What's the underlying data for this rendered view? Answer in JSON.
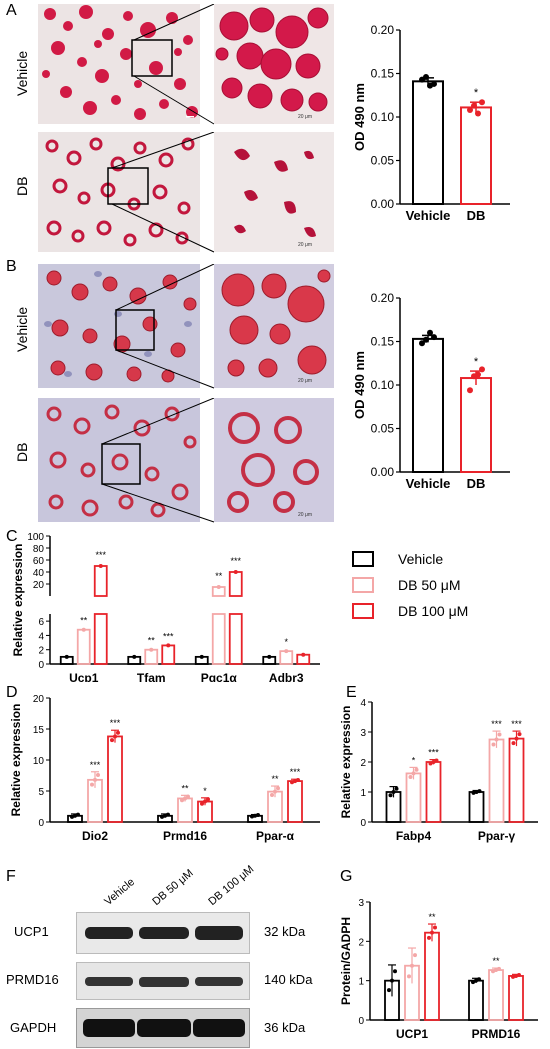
{
  "panels": {
    "A": {
      "letter": "A",
      "rows": [
        "Vehicle",
        "DB"
      ],
      "scale_bar": "20 μm",
      "chart_data": {
        "type": "bar",
        "categories": [
          "Vehicle",
          "DB"
        ],
        "values": [
          0.141,
          0.111
        ],
        "errors": [
          0.004,
          0.006
        ],
        "points": [
          [
            0.143,
            0.146,
            0.136,
            0.138
          ],
          [
            0.108,
            0.113,
            0.104,
            0.117
          ]
        ],
        "significance": [
          "",
          "*"
        ],
        "ylabel": "OD 490 nm",
        "ylim": [
          0,
          0.2
        ],
        "yticks": [
          "0.00",
          "0.05",
          "0.10",
          "0.15",
          "0.20"
        ],
        "colors": [
          "#000000",
          "#e8232a"
        ]
      }
    },
    "B": {
      "letter": "B",
      "rows": [
        "Vehicle",
        "DB"
      ],
      "scale_bar": "20 μm",
      "chart_data": {
        "type": "bar",
        "categories": [
          "Vehicle",
          "DB"
        ],
        "values": [
          0.153,
          0.108
        ],
        "errors": [
          0.004,
          0.008
        ],
        "points": [
          [
            0.148,
            0.152,
            0.16,
            0.155
          ],
          [
            0.094,
            0.11,
            0.112,
            0.118
          ]
        ],
        "significance": [
          "",
          "*"
        ],
        "ylabel": "OD 490 nm",
        "ylim": [
          0,
          0.2
        ],
        "yticks": [
          "0.00",
          "0.05",
          "0.10",
          "0.15",
          "0.20"
        ],
        "colors": [
          "#000000",
          "#e8232a"
        ]
      }
    },
    "C": {
      "letter": "C",
      "legend": [
        "Vehicle",
        "DB 50 μM",
        "DB 100 μM"
      ],
      "chart_data": {
        "type": "bar",
        "categories": [
          "Ucp1",
          "Tfam",
          "Pgc1α",
          "Adbr3"
        ],
        "series": [
          {
            "name": "Vehicle",
            "values": [
              1.0,
              1.0,
              1.0,
              1.0
            ],
            "sig": [
              "",
              "",
              "",
              ""
            ]
          },
          {
            "name": "DB 50 μM",
            "values": [
              4.8,
              2.0,
              15,
              1.8
            ],
            "sig": [
              "**",
              "**",
              "**",
              "*"
            ]
          },
          {
            "name": "DB 100 μM",
            "values": [
              50,
              2.6,
              40,
              1.3
            ],
            "sig": [
              "***",
              "***",
              "***",
              ""
            ]
          }
        ],
        "ylabel": "Relative  expression",
        "yticks_low": [
          "0",
          "2",
          "4",
          "6"
        ],
        "yticks_high": [
          "20",
          "40",
          "60",
          "80",
          "100"
        ],
        "colors": [
          "#000000",
          "#f4a7a7",
          "#e8232a"
        ]
      }
    },
    "D": {
      "letter": "D",
      "chart_data": {
        "type": "bar",
        "categories": [
          "Dio2",
          "Prmd16",
          "Ppar-α"
        ],
        "series": [
          {
            "name": "Vehicle",
            "values": [
              1.0,
              1.0,
              1.0
            ],
            "sig": [
              "",
              "",
              ""
            ]
          },
          {
            "name": "DB 50 μM",
            "values": [
              6.8,
              3.8,
              4.9
            ],
            "sig": [
              "***",
              "**",
              "**"
            ]
          },
          {
            "name": "DB 100 μM",
            "values": [
              13.8,
              3.3,
              6.6
            ],
            "sig": [
              "***",
              "*",
              "***"
            ]
          }
        ],
        "errors": [
          [
            0.3,
            0.3,
            0.2
          ],
          [
            1.3,
            0.5,
            0.9
          ],
          [
            1.0,
            0.6,
            0.3
          ]
        ],
        "ylabel": "Relative  expression",
        "ylim": [
          0,
          20
        ],
        "yticks": [
          "0",
          "5",
          "10",
          "15",
          "20"
        ],
        "colors": [
          "#000000",
          "#f4a7a7",
          "#e8232a"
        ]
      }
    },
    "E": {
      "letter": "E",
      "chart_data": {
        "type": "bar",
        "categories": [
          "Fabp4",
          "Ppar-γ"
        ],
        "series": [
          {
            "name": "Vehicle",
            "values": [
              1.0,
              1.0
            ],
            "sig": [
              "",
              ""
            ]
          },
          {
            "name": "DB 50 μM",
            "values": [
              1.62,
              2.75
            ],
            "sig": [
              "*",
              "***"
            ]
          },
          {
            "name": "DB 100 μM",
            "values": [
              2.0,
              2.78
            ],
            "sig": [
              "***",
              "***"
            ]
          }
        ],
        "errors": [
          [
            0.18,
            0.05
          ],
          [
            0.2,
            0.28
          ],
          [
            0.08,
            0.25
          ]
        ],
        "ylabel": "Relative  expression",
        "ylim": [
          0,
          4
        ],
        "yticks": [
          "0",
          "1",
          "2",
          "3",
          "4"
        ],
        "colors": [
          "#000000",
          "#f4a7a7",
          "#e8232a"
        ]
      }
    },
    "F": {
      "letter": "F",
      "lanes": [
        "Vehicle",
        "DB 50 μM",
        "DB 100 μM"
      ],
      "proteins": [
        {
          "name": "UCP1",
          "kda": "32 kDa"
        },
        {
          "name": "PRMD16",
          "kda": "140 kDa"
        },
        {
          "name": "GAPDH",
          "kda": "36 kDa"
        }
      ]
    },
    "G": {
      "letter": "G",
      "chart_data": {
        "type": "bar",
        "categories": [
          "UCP1",
          "PRMD16"
        ],
        "series": [
          {
            "name": "Vehicle",
            "values": [
              1.0,
              1.0
            ],
            "sig": [
              "",
              ""
            ]
          },
          {
            "name": "DB 50 μM",
            "values": [
              1.38,
              1.27
            ],
            "sig": [
              "",
              "**"
            ]
          },
          {
            "name": "DB 100 μM",
            "values": [
              2.22,
              1.12
            ],
            "sig": [
              "**",
              ""
            ]
          }
        ],
        "errors": [
          [
            0.4,
            0.06
          ],
          [
            0.45,
            0.05
          ],
          [
            0.22,
            0.04
          ]
        ],
        "ylabel": "Protein/GADPH",
        "ylim": [
          0,
          3
        ],
        "yticks": [
          "0",
          "1",
          "2",
          "3"
        ],
        "colors": [
          "#000000",
          "#f4a7a7",
          "#e8232a"
        ]
      }
    }
  }
}
